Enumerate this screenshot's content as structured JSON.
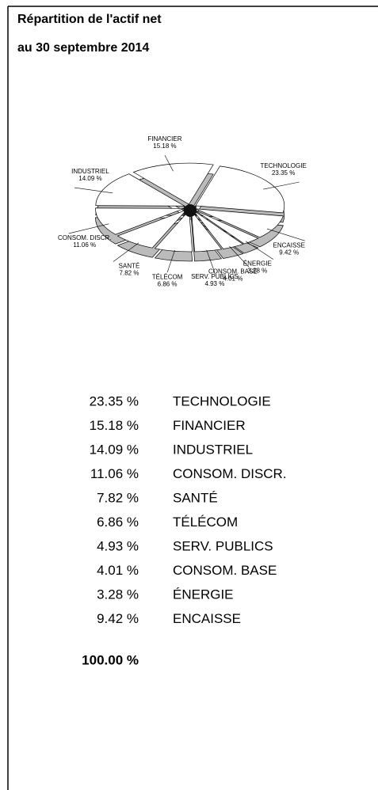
{
  "chart_data": {
    "type": "pie",
    "title": "Répartition de l'actif net",
    "subtitle": "au 30 septembre 2014",
    "categories": [
      "TECHNOLOGIE",
      "FINANCIER",
      "INDUSTRIEL",
      "CONSOM. DISCR.",
      "SANTÉ",
      "TÉLÉCOM",
      "SERV. PUBLICS",
      "CONSOM. BASE",
      "ÉNERGIE",
      "ENCAISSE"
    ],
    "values": [
      23.35,
      15.18,
      14.09,
      11.06,
      7.82,
      6.86,
      4.93,
      4.01,
      3.28,
      9.42
    ],
    "value_labels": [
      "23.35 %",
      "15.18 %",
      "14.09 %",
      "11.06 %",
      "7.82 %",
      "6.86 %",
      "4.93 %",
      "4.01 %",
      "3.28 %",
      "9.42 %"
    ],
    "color": "#ffffff",
    "total": "100.00 %"
  }
}
